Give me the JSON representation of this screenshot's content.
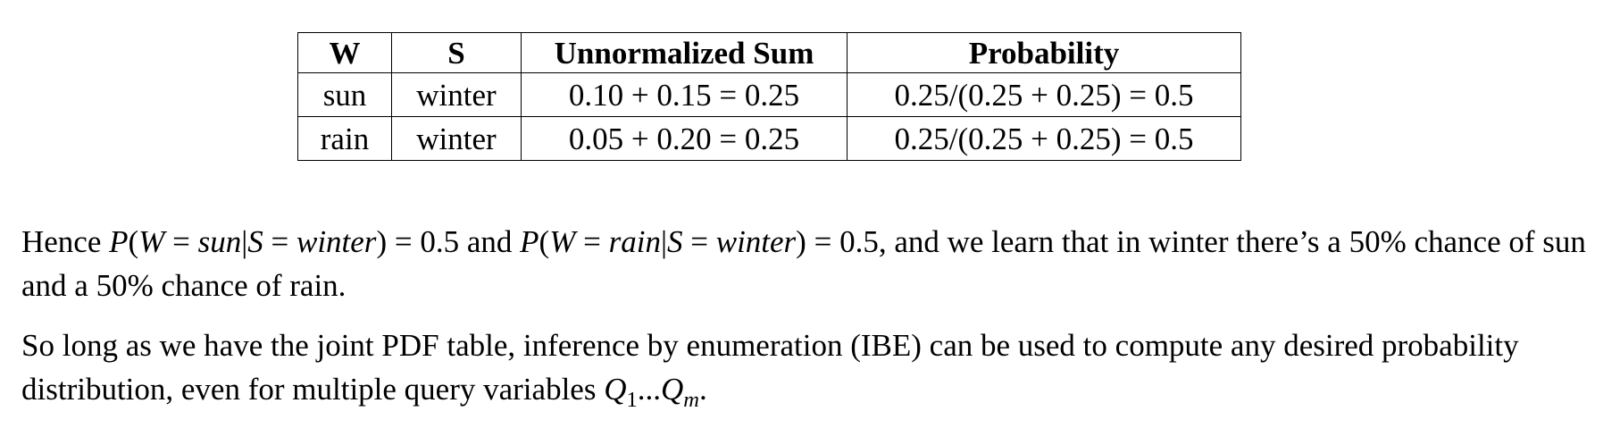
{
  "table": {
    "headers": [
      "W",
      "S",
      "Unnormalized Sum",
      "Probability"
    ],
    "rows": [
      [
        "sun",
        "winter",
        "0.10 + 0.15 = 0.25",
        "0.25/(0.25 + 0.25) = 0.5"
      ],
      [
        "rain",
        "winter",
        "0.05 + 0.20 = 0.25",
        "0.25/(0.25 + 0.25) = 0.5"
      ]
    ]
  },
  "para1": {
    "hence": "Hence",
    "expr1_p": "P",
    "expr1_open": "(",
    "expr1_w": "W",
    "expr1_eq": " = ",
    "expr1_val": "sun",
    "expr1_bar": "|",
    "expr1_s": "S",
    "expr1_eq2": " = ",
    "expr1_cond": "winter",
    "expr1_close": ")",
    "expr1_result": " = 0.5",
    "and1": " and ",
    "expr2_p": "P",
    "expr2_open": "(",
    "expr2_w": "W",
    "expr2_eq": " = ",
    "expr2_val": "rain",
    "expr2_bar": "|",
    "expr2_s": "S",
    "expr2_eq2": " = ",
    "expr2_cond": "winter",
    "expr2_close": ")",
    "expr2_result": " = 0.5",
    "rest": ", and we learn that in winter there’s a 50% chance of sun and a 50% chance of rain."
  },
  "para2": {
    "text": "So long as we have the joint PDF table, inference by enumeration (IBE) can be used to compute any desired probability distribution, even for multiple query variables ",
    "q1_letter": "Q",
    "q1_sub": "1",
    "dots": "...",
    "qm_letter": "Q",
    "qm_sub": "m",
    "period": "."
  }
}
